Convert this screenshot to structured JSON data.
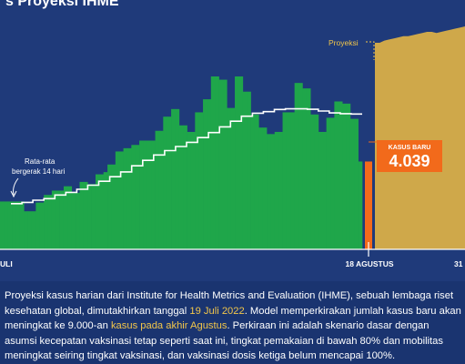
{
  "title": "s Proyeksi IHME",
  "colors": {
    "background": "#1f3a7a",
    "bars": "#1fa64a",
    "projection": "#cfa84a",
    "highlight": "#f26a1b",
    "average_line": "#ffffff",
    "caption_highlight": "#f2c64a"
  },
  "annotations": {
    "projection_label": "Proyeksi",
    "avg_label_line1": "Rata-rata",
    "avg_label_line2": "bergerak 14 hari",
    "new_cases_label": "KASUS BARU",
    "new_cases_value": "4.039"
  },
  "x_ticks": {
    "left": "ULI",
    "mid": "18 AGUSTUS",
    "right": "31"
  },
  "caption": {
    "part1": "Proyeksi kasus harian dari Institute for Health Metrics and Evaluation (IHME), sebuah lembaga riset kesehatan  global, dimutakhirkan tanggal ",
    "date": "19 Juli 2022",
    "part2": ". Model memperkirakan jumlah kasus baru akan meningkat ke 9.000-an ",
    "highlight": "kasus pada akhir Agustus",
    "part3": ". Perkiraan ini adalah skenario dasar dengan asumsi kecepatan vaksinasi tetap seperti saat ini, tingkat pemakaian di bawah 80% dan mobilitas meningkat seiring tingkat vaksinasi, dan vaksinasi dosis ketiga belum mencapai 100%."
  },
  "chart_data": {
    "type": "bar",
    "ylim": [
      0,
      10000
    ],
    "daily_cases": [
      2200,
      2200,
      2200,
      2200,
      2200,
      2200,
      1750,
      1750,
      1750,
      2150,
      2150,
      2500,
      2500,
      2700,
      2700,
      2700,
      2900,
      2900,
      2600,
      2600,
      3100,
      3100,
      3000,
      3000,
      3450,
      3450,
      3550,
      3900,
      3900,
      4500,
      4500,
      4650,
      4650,
      4800,
      4800,
      5000,
      5000,
      5000,
      5000,
      5450,
      5450,
      6100,
      6100,
      6450,
      6450,
      5700,
      5700,
      5400,
      5400,
      6300,
      6300,
      6900,
      6900,
      7950,
      7950,
      7800,
      7800,
      6500,
      6500,
      7950,
      7950,
      7250,
      7250,
      6200,
      6200,
      5600,
      5600,
      5300,
      5300,
      5400,
      5400,
      6300,
      6300,
      6300,
      7650,
      7650,
      7400,
      7400,
      6200,
      6200,
      5400,
      5400,
      6050,
      6050,
      6800,
      6800,
      6700,
      6700,
      6000,
      6000,
      4039
    ],
    "moving_avg_14d": [
      2100,
      2160,
      2260,
      2330,
      2500,
      2620,
      2760,
      2950,
      3130,
      3340,
      3560,
      3840,
      4090,
      4340,
      4540,
      4730,
      4920,
      5140,
      5370,
      5630,
      5890,
      6120,
      6260,
      6330,
      6430,
      6460,
      6460,
      6440,
      6360,
      6270,
      6240,
      6220
    ],
    "projection": [
      9500,
      9500,
      9600,
      9650,
      9700,
      9750,
      9800,
      9800,
      9850,
      9900,
      9950,
      10000,
      10000,
      9950,
      10000,
      10050,
      10100,
      10150,
      10200,
      10250
    ],
    "latest_value": 4039
  }
}
